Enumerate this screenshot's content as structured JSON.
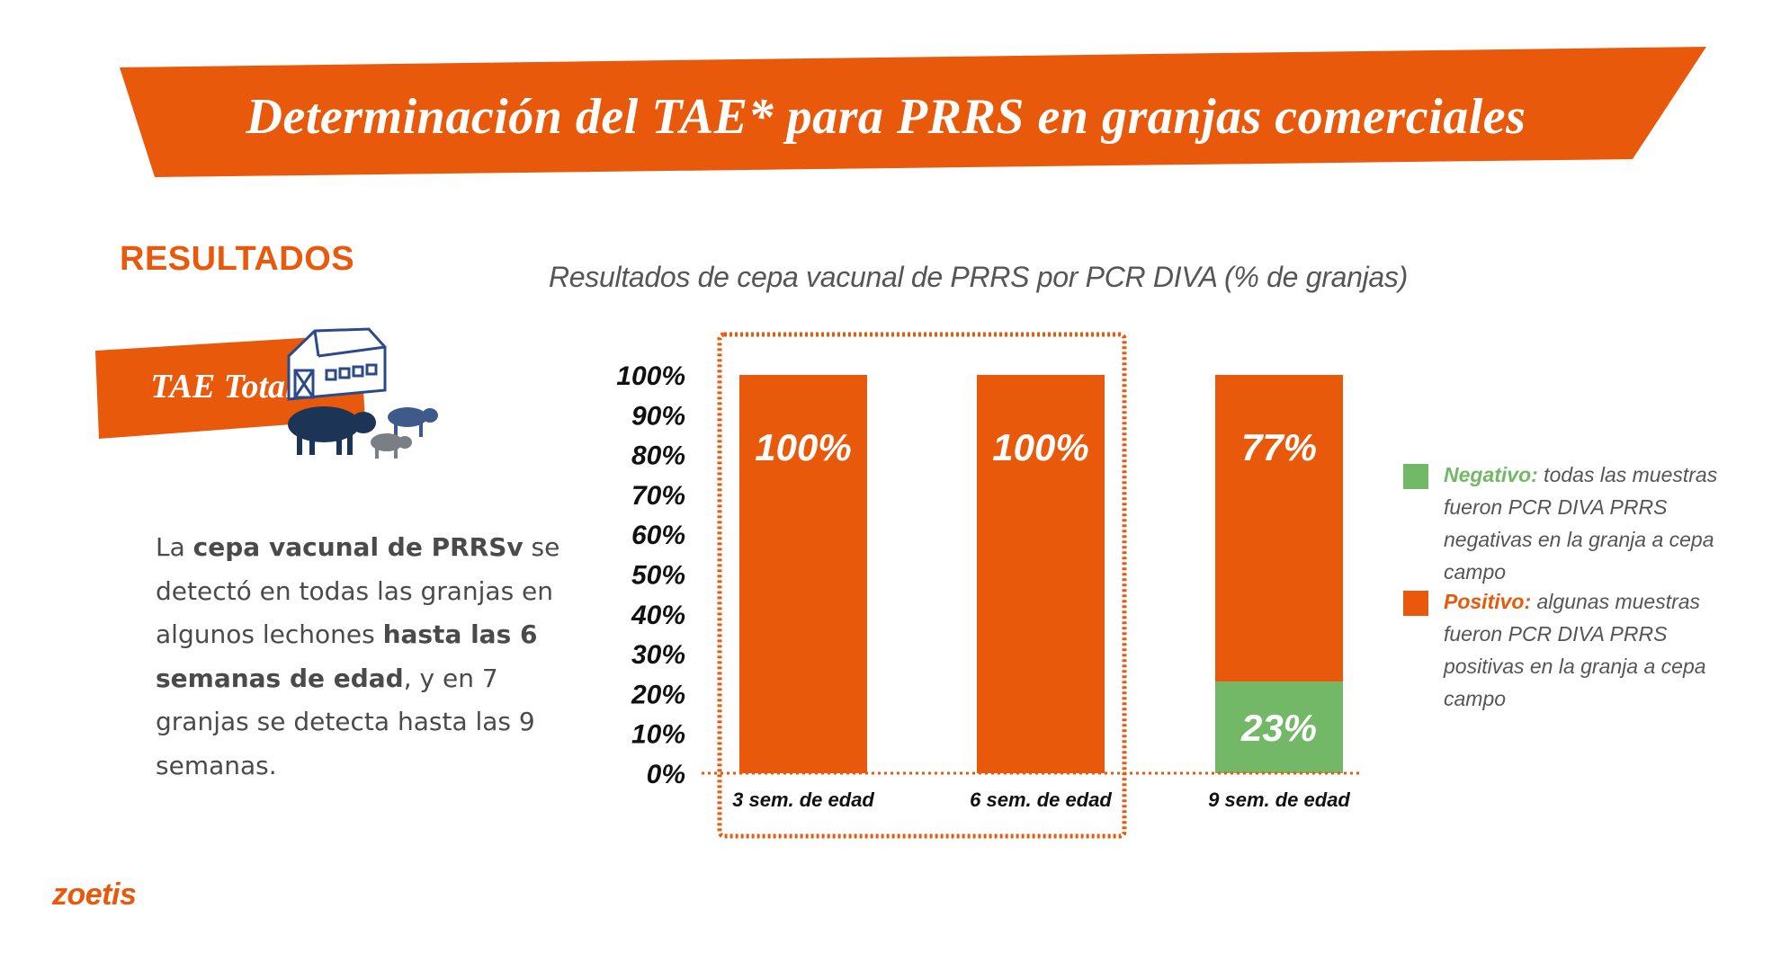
{
  "banner": {
    "title": "Determinación del TAE*  para PRRS en granjas comerciales"
  },
  "section": {
    "title": "RESULTADOS"
  },
  "tag": {
    "label": "TAE Total"
  },
  "body": {
    "parts": [
      {
        "text": "La ",
        "bold": false
      },
      {
        "text": "cepa vacunal de PRRSv",
        "bold": true
      },
      {
        "text": " se detectó en todas las granjas en algunos lechones ",
        "bold": false
      },
      {
        "text": "hasta las 6 semanas de edad",
        "bold": true
      },
      {
        "text": ", y en 7 granjas se detecta hasta las 9 semanas.",
        "bold": false
      }
    ]
  },
  "legend": {
    "negative": {
      "label": "Negativo:",
      "text": " todas las muestras fueron PCR DIVA PRRS negativas en la granja a cepa campo"
    },
    "positive": {
      "label": "Positivo:",
      "text": " algunas muestras fueron PCR DIVA PRRS positivas en la granja a cepa campo"
    }
  },
  "logo": {
    "text": "zoetis"
  },
  "colors": {
    "accent": "#e8590c",
    "negative": "#72b866",
    "navy": "#1c3557",
    "text": "#4a4a4a"
  },
  "icons": [
    "barn-icon",
    "pig-icon",
    "piglet-icon"
  ],
  "chart_data": {
    "type": "bar",
    "stacked": true,
    "title": "Resultados de cepa vacunal de PRRS por PCR DIVA (% de granjas)",
    "categories": [
      "3 sem. de edad",
      "6 sem. de edad",
      "9 sem. de edad"
    ],
    "series": [
      {
        "name": "Negativo",
        "color": "#72b866",
        "values": [
          0,
          0,
          23
        ],
        "labels": [
          "",
          "",
          "23%"
        ]
      },
      {
        "name": "Positivo",
        "color": "#e8590c",
        "values": [
          100,
          100,
          77
        ],
        "labels": [
          "100%",
          "100%",
          "77%"
        ]
      }
    ],
    "ylim": [
      0,
      100
    ],
    "yticks": [
      "0%",
      "10%",
      "20%",
      "30%",
      "40%",
      "50%",
      "60%",
      "70%",
      "80%",
      "90%",
      "100%"
    ],
    "highlight_categories": [
      0,
      1
    ],
    "legend_position": "right"
  }
}
